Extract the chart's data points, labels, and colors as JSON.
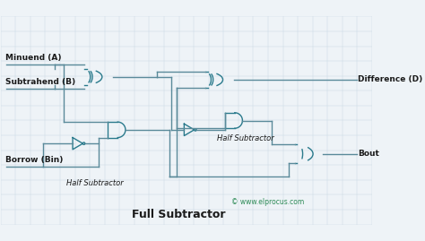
{
  "title": "Full Subtractor",
  "subtitle": "© www.elprocus.com",
  "subtitle_color": "#2e8b57",
  "background_color": "#eef3f7",
  "gate_color": "#2a7a8c",
  "line_color": "#5a8a9a",
  "text_color": "#1a1a1a",
  "grid_color": "#c5d5e0",
  "labels": {
    "minuend": "Minuend (A)",
    "subtrahend": "Subtrahend (B)",
    "borrow_in": "Borrow (Bin)",
    "difference": "Difference (D)",
    "bout": "Bout",
    "half_sub1": "Half Subtractor",
    "half_sub2": "Half Subtractor"
  }
}
